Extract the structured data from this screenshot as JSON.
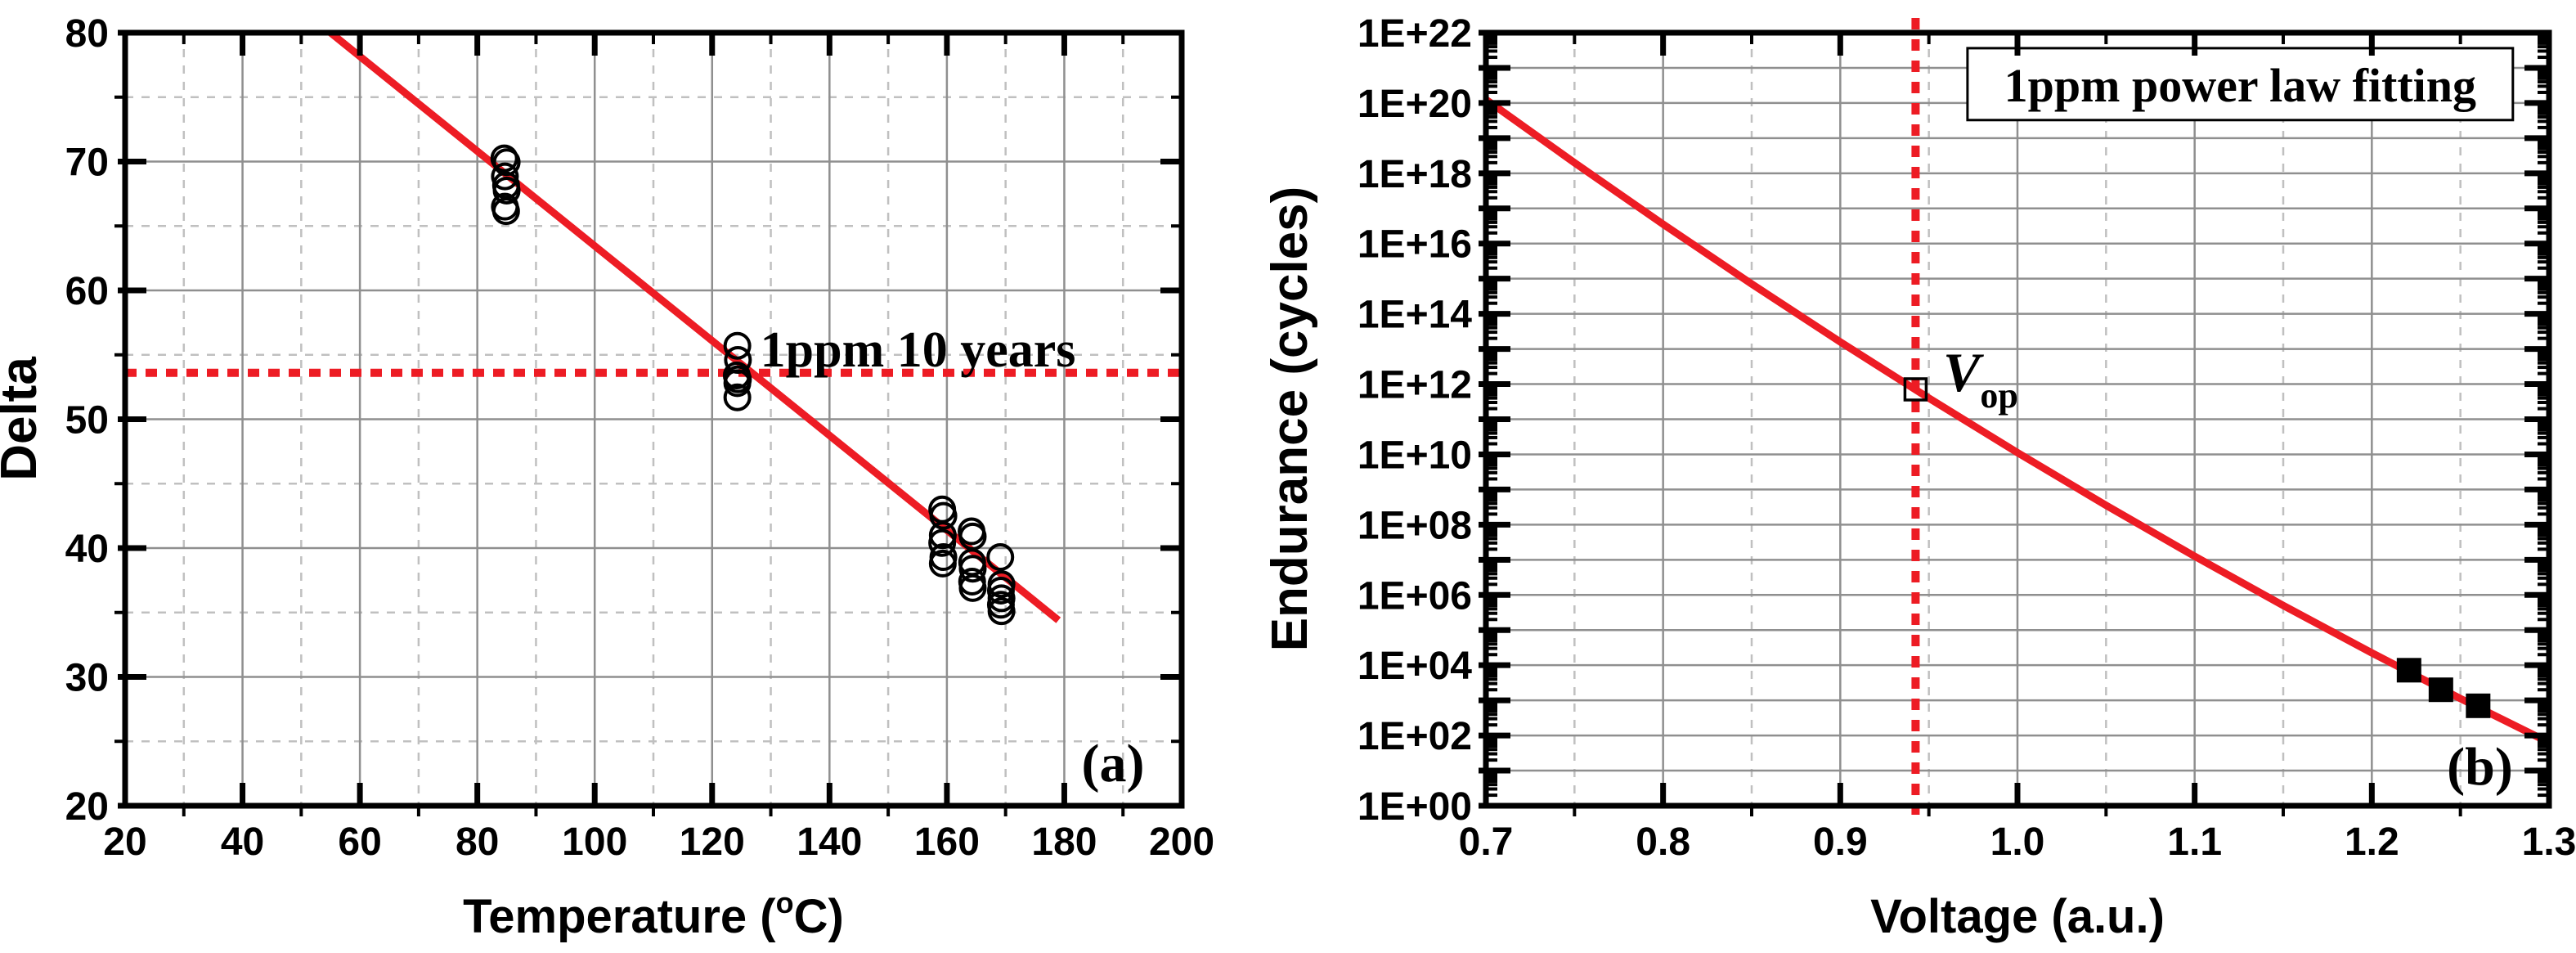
{
  "colors": {
    "background": "#ffffff",
    "red": "#ED1C24",
    "axis": "#000000",
    "grid_major": "#8f8f8f",
    "grid_minor": "#c0c0c0",
    "marker_stroke": "#000000",
    "marker_fill": "#000000",
    "legend_border": "#000000"
  },
  "chart_data": [
    {
      "id": "a",
      "type": "scatter",
      "panel_label": "(a)",
      "xlabel": {
        "pre": "Temperature (",
        "sup": "o",
        "post": "C)"
      },
      "ylabel": "Delta",
      "xlim": [
        20,
        200
      ],
      "ylim": [
        20,
        80
      ],
      "grid": "major-solid, minor-dashed",
      "x_major_ticks": [
        {
          "v": 20,
          "label": "20"
        },
        {
          "v": 40,
          "label": "40"
        },
        {
          "v": 60,
          "label": "60"
        },
        {
          "v": 80,
          "label": "80"
        },
        {
          "v": 100,
          "label": "100"
        },
        {
          "v": 120,
          "label": "120"
        },
        {
          "v": 140,
          "label": "140"
        },
        {
          "v": 160,
          "label": "160"
        },
        {
          "v": 180,
          "label": "180"
        },
        {
          "v": 200,
          "label": "200"
        }
      ],
      "x_minor": [
        30,
        50,
        70,
        90,
        110,
        130,
        150,
        170,
        190
      ],
      "y_major_ticks": [
        {
          "v": 20,
          "label": "20"
        },
        {
          "v": 30,
          "label": "30"
        },
        {
          "v": 40,
          "label": "40"
        },
        {
          "v": 50,
          "label": "50"
        },
        {
          "v": 60,
          "label": "60"
        },
        {
          "v": 70,
          "label": "70"
        },
        {
          "v": 80,
          "label": "80"
        }
      ],
      "y_minor": [
        25,
        35,
        45,
        55,
        65,
        75
      ],
      "series": [
        {
          "name": "delta-vs-temperature-data",
          "marker": "open-circle",
          "points": [
            [
              84.6,
              70.25
            ],
            [
              85.0,
              69.95
            ],
            [
              84.7,
              68.85
            ],
            [
              84.9,
              68.15
            ],
            [
              85.0,
              67.75
            ],
            [
              84.7,
              66.5
            ],
            [
              84.9,
              66.15
            ],
            [
              124.3,
              55.7
            ],
            [
              124.4,
              54.6
            ],
            [
              124.2,
              53.4
            ],
            [
              124.4,
              53.1
            ],
            [
              124.3,
              52.8
            ],
            [
              124.3,
              51.7
            ],
            [
              159.2,
              43.0
            ],
            [
              159.4,
              42.5
            ],
            [
              159.3,
              41.0
            ],
            [
              159.2,
              40.4
            ],
            [
              159.4,
              39.3
            ],
            [
              159.3,
              38.8
            ],
            [
              164.2,
              41.3
            ],
            [
              164.4,
              40.9
            ],
            [
              164.3,
              38.9
            ],
            [
              164.4,
              38.4
            ],
            [
              164.3,
              37.4
            ],
            [
              164.4,
              36.9
            ],
            [
              169.1,
              39.3
            ],
            [
              169.3,
              37.2
            ],
            [
              169.2,
              36.7
            ],
            [
              169.3,
              36.1
            ],
            [
              169.2,
              35.6
            ],
            [
              169.3,
              35.1
            ]
          ]
        }
      ],
      "fit_line": {
        "name": "arrhenius-fit-line",
        "points": [
          [
            55,
            80
          ],
          [
            179,
            34.4
          ]
        ]
      },
      "ref_line": {
        "name": "1ppm-10-years-level",
        "orientation": "horizontal",
        "value": 53.6
      },
      "annotations": [
        {
          "id": "ref-label",
          "text": "1ppm 10 years",
          "x": 128.2,
          "y": 54.1,
          "anchor": "start"
        },
        {
          "id": "panel-label",
          "text": "(a)",
          "x": 188.3,
          "y": 21.9,
          "anchor": "middle"
        }
      ]
    },
    {
      "id": "b",
      "type": "scatter",
      "panel_label": "(b)",
      "xlabel": {
        "pre": "Voltage (a.u.)",
        "sup": "",
        "post": ""
      },
      "ylabel": "Endurance (cycles)",
      "xlim": [
        0.7,
        1.3
      ],
      "ylog_decades": [
        0,
        22
      ],
      "grid": "all-decades-solid, x-major-solid, x-minor-dashed",
      "x_major_ticks": [
        {
          "v": 0.7,
          "label": "0.7"
        },
        {
          "v": 0.8,
          "label": "0.8"
        },
        {
          "v": 0.9,
          "label": "0.9"
        },
        {
          "v": 1.0,
          "label": "1.0"
        },
        {
          "v": 1.1,
          "label": "1.1"
        },
        {
          "v": 1.2,
          "label": "1.2"
        },
        {
          "v": 1.3,
          "label": "1.3"
        }
      ],
      "x_minor": [
        0.75,
        0.85,
        0.95,
        1.05,
        1.15,
        1.25
      ],
      "y_decade_labels": [
        {
          "d": 0,
          "label": "1E+00"
        },
        {
          "d": 2,
          "label": "1E+02"
        },
        {
          "d": 4,
          "label": "1E+04"
        },
        {
          "d": 6,
          "label": "1E+06"
        },
        {
          "d": 8,
          "label": "1E+08"
        },
        {
          "d": 10,
          "label": "1E+10"
        },
        {
          "d": 12,
          "label": "1E+12"
        },
        {
          "d": 14,
          "label": "1E+14"
        },
        {
          "d": 16,
          "label": "1E+16"
        },
        {
          "d": 18,
          "label": "1E+18"
        },
        {
          "d": 20,
          "label": "1E+20"
        },
        {
          "d": 22,
          "label": "1E+22"
        }
      ],
      "series": [
        {
          "name": "endurance-cycling-data",
          "marker": "filled-square",
          "points": [
            [
              1.221,
              7200
            ],
            [
              1.239,
              2000
            ],
            [
              1.26,
              700
            ]
          ]
        }
      ],
      "fit_line": {
        "name": "1ppm-power-law-fit",
        "points_v_logE": [
          [
            0.7,
            20.1
          ],
          [
            0.75,
            18.3
          ],
          [
            0.8,
            16.55
          ],
          [
            0.85,
            14.85
          ],
          [
            0.9,
            13.2
          ],
          [
            0.95,
            11.6
          ],
          [
            1.0,
            10.05
          ],
          [
            1.05,
            8.55
          ],
          [
            1.1,
            7.1
          ],
          [
            1.15,
            5.7
          ],
          [
            1.2,
            4.35
          ],
          [
            1.25,
            3.05
          ],
          [
            1.3,
            1.8
          ]
        ]
      },
      "ref_line": {
        "name": "operating-voltage-line",
        "orientation": "vertical",
        "value": 0.9425
      },
      "op_marker": {
        "shape": "open-square",
        "v": 0.9425,
        "log_e": 11.85,
        "label": {
          "main": "V",
          "sub": "op"
        },
        "label_pos": {
          "v": 0.958,
          "log_e": 11.8
        }
      },
      "legend": {
        "text": "1ppm power law fitting",
        "box_frac": {
          "x0": 0.453,
          "y0": 0.02,
          "x1": 0.966,
          "y1": 0.113
        }
      },
      "annotations": [
        {
          "id": "panel-label",
          "text": "(b)",
          "x": 1.261,
          "y_log": 0.6,
          "anchor": "middle"
        }
      ]
    }
  ]
}
